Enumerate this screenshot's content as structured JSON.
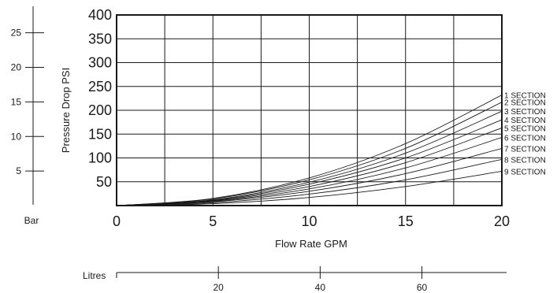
{
  "chart_data": {
    "type": "line",
    "xlabel": "Flow Rate GPM",
    "ylabel": "Pressure Drop PSI",
    "xlim": [
      0,
      20
    ],
    "ylim": [
      0,
      400
    ],
    "x_ticks": [
      0,
      5,
      10,
      15,
      20
    ],
    "y_ticks": [
      50,
      100,
      150,
      200,
      250,
      300,
      350,
      400
    ],
    "x_grid": [
      0,
      2.5,
      5,
      7.5,
      10,
      12.5,
      15,
      17.5,
      20
    ],
    "y_grid": [
      50,
      100,
      150,
      200,
      250,
      300,
      350,
      400
    ],
    "grid": true,
    "legend": "curve labels at right end",
    "bar_axis": {
      "label": "Bar",
      "ticks": [
        5,
        10,
        15,
        20,
        25
      ]
    },
    "litres_axis": {
      "label": "Litres",
      "ticks": [
        20,
        40,
        60
      ]
    },
    "series": [
      {
        "name": "1 SECTION",
        "x": [
          0,
          5,
          10,
          15,
          20
        ],
        "values": [
          0,
          15,
          58,
          130,
          232
        ]
      },
      {
        "name": "2 SECTION",
        "x": [
          0,
          5,
          10,
          15,
          20
        ],
        "values": [
          0,
          14,
          54,
          120,
          217
        ]
      },
      {
        "name": "3 SECTION",
        "x": [
          0,
          5,
          10,
          15,
          20
        ],
        "values": [
          0,
          12,
          49,
          110,
          198
        ]
      },
      {
        "name": "4 SECTION",
        "x": [
          0,
          5,
          10,
          15,
          20
        ],
        "values": [
          0,
          11,
          45,
          100,
          180
        ]
      },
      {
        "name": "5 SECTION",
        "x": [
          0,
          5,
          10,
          15,
          20
        ],
        "values": [
          0,
          10,
          40,
          90,
          163
        ]
      },
      {
        "name": "6 SECTION",
        "x": [
          0,
          5,
          10,
          15,
          20
        ],
        "values": [
          0,
          9,
          35,
          79,
          143
        ]
      },
      {
        "name": "7 SECTION",
        "x": [
          0,
          5,
          10,
          15,
          20
        ],
        "values": [
          0,
          8,
          30,
          67,
          120
        ]
      },
      {
        "name": "8 SECTION",
        "x": [
          0,
          5,
          10,
          15,
          20
        ],
        "values": [
          0,
          6,
          24,
          54,
          97
        ]
      },
      {
        "name": "9 SECTION",
        "x": [
          0,
          5,
          10,
          15,
          20
        ],
        "values": [
          0,
          4,
          17,
          40,
          72
        ]
      }
    ]
  }
}
